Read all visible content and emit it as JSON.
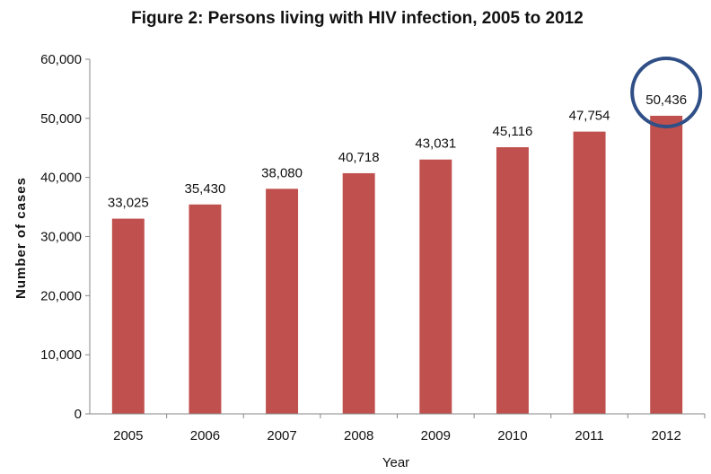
{
  "colors": {
    "bar": "#c0504d",
    "axis": "#868686",
    "highlight_circle": "#2f4f86"
  },
  "chart_data": {
    "type": "bar",
    "title": "Figure 2: Persons living with HIV infection, 2005 to 2012",
    "xlabel": "Year",
    "ylabel": "Number of cases",
    "categories": [
      "2005",
      "2006",
      "2007",
      "2008",
      "2009",
      "2010",
      "2011",
      "2012"
    ],
    "values": [
      33025,
      35430,
      38080,
      40718,
      43031,
      45116,
      47754,
      50436
    ],
    "value_labels": [
      "33,025",
      "35,430",
      "38,080",
      "40,718",
      "43,031",
      "45,116",
      "47,754",
      "50,436"
    ],
    "yticks": [
      "0",
      "10,000",
      "20,000",
      "30,000",
      "40,000",
      "50,000",
      "60,000"
    ],
    "ylim": [
      0,
      60000
    ],
    "grid": false,
    "legend": "none",
    "highlighted_category": "2012"
  }
}
